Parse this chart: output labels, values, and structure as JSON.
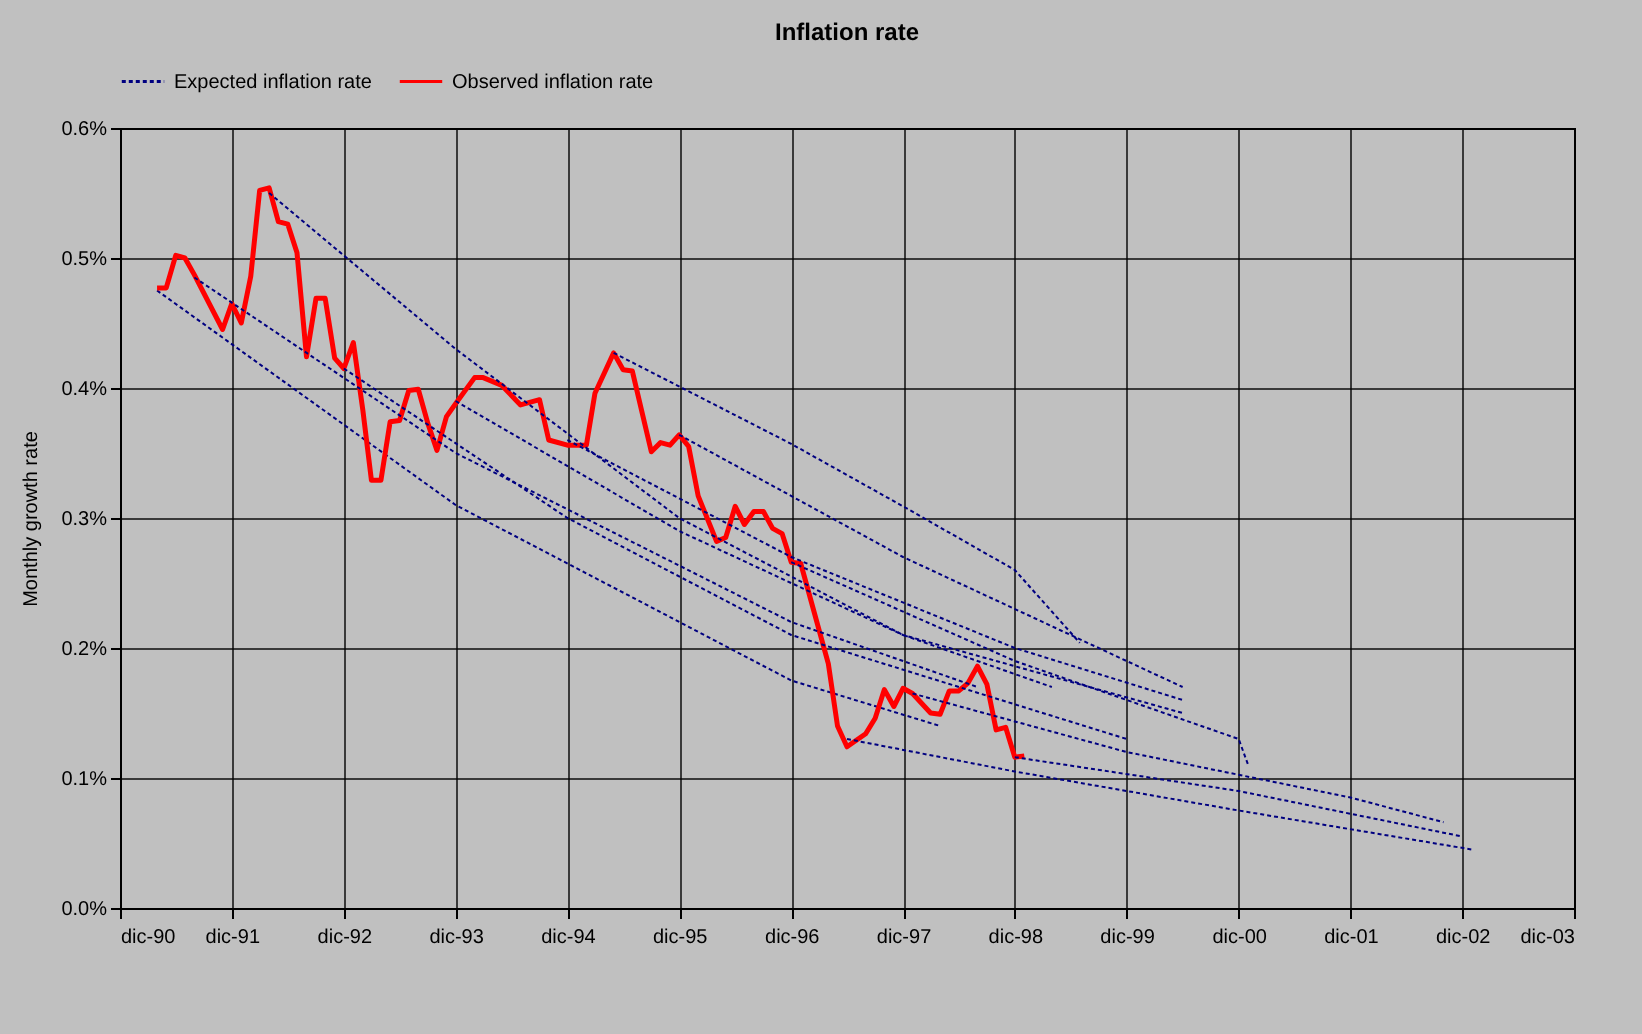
{
  "chart_data": {
    "type": "line",
    "title": "Inflation rate",
    "ylabel": "Monthly growth rate",
    "legend": "top",
    "grid": true,
    "marker": "none",
    "xlim": [
      "1990-12",
      "2003-12"
    ],
    "xticks": [
      {
        "value": "1990-12",
        "label": "dic-90"
      },
      {
        "value": "1991-12",
        "label": "dic-91"
      },
      {
        "value": "1992-12",
        "label": "dic-92"
      },
      {
        "value": "1993-12",
        "label": "dic-93"
      },
      {
        "value": "1994-12",
        "label": "dic-94"
      },
      {
        "value": "1995-12",
        "label": "dic-95"
      },
      {
        "value": "1996-12",
        "label": "dic-96"
      },
      {
        "value": "1997-12",
        "label": "dic-97"
      },
      {
        "value": "1998-12",
        "label": "dic-98"
      },
      {
        "value": "1999-12",
        "label": "dic-99"
      },
      {
        "value": "2000-12",
        "label": "dic-00"
      },
      {
        "value": "2001-12",
        "label": "dic-01"
      },
      {
        "value": "2002-12",
        "label": "dic-02"
      },
      {
        "value": "2003-12",
        "label": "dic-03"
      }
    ],
    "ylim": [
      0,
      0.6
    ],
    "yticks": [
      {
        "value": 0,
        "label": "0.0%"
      },
      {
        "value": 0.1,
        "label": "0.1%"
      },
      {
        "value": 0.2,
        "label": "0.2%"
      },
      {
        "value": 0.3,
        "label": "0.3%"
      },
      {
        "value": 0.4,
        "label": "0.4%"
      },
      {
        "value": 0.5,
        "label": "0.5%"
      },
      {
        "value": 0.6,
        "label": "0.6%"
      }
    ],
    "series": [
      {
        "name": "Expected inflation rate",
        "color": "#000080",
        "line_style": "dotted",
        "x": [
          "1991-04",
          "1993-12",
          "1996-12",
          "1998-04"
        ],
        "values": [
          0.475,
          0.31,
          0.175,
          0.14
        ]
      },
      {
        "color": "#000080",
        "line_style": "dotted",
        "x": [
          "1991-08",
          "1993-12",
          "1996-12",
          "1998-08"
        ],
        "values": [
          0.485,
          0.35,
          0.22,
          0.17
        ]
      },
      {
        "color": "#000080",
        "line_style": "dotted",
        "x": [
          "1992-04",
          "1993-12",
          "1995-12",
          "1997-12",
          "1999-04"
        ],
        "values": [
          0.55,
          0.43,
          0.3,
          0.21,
          0.17
        ]
      },
      {
        "color": "#000080",
        "line_style": "dotted",
        "x": [
          "1992-12",
          "1994-12",
          "1996-12",
          "1999-12"
        ],
        "values": [
          0.415,
          0.3,
          0.21,
          0.13
        ]
      },
      {
        "color": "#000080",
        "line_style": "dotted",
        "x": [
          "1993-12",
          "1995-12",
          "1997-12",
          "2000-06"
        ],
        "values": [
          0.39,
          0.29,
          0.21,
          0.15
        ]
      },
      {
        "color": "#000080",
        "line_style": "dotted",
        "x": [
          "1994-12",
          "1996-12",
          "1998-12",
          "2000-06"
        ],
        "values": [
          0.36,
          0.27,
          0.2,
          0.16
        ]
      },
      {
        "color": "#000080",
        "line_style": "dotted",
        "x": [
          "1995-05",
          "1996-12",
          "1997-12",
          "1998-12",
          "1999-07"
        ],
        "values": [
          0.427,
          0.357,
          0.309,
          0.26,
          0.204
        ]
      },
      {
        "color": "#000080",
        "line_style": "dotted",
        "x": [
          "1995-12",
          "1997-12",
          "1999-12",
          "2000-06"
        ],
        "values": [
          0.364,
          0.27,
          0.19,
          0.17
        ]
      },
      {
        "color": "#000080",
        "line_style": "dotted",
        "x": [
          "1996-12",
          "1998-12",
          "2000-12",
          "2001-01"
        ],
        "values": [
          0.266,
          0.19,
          0.13,
          0.11
        ]
      },
      {
        "color": "#000080",
        "line_style": "dotted",
        "x": [
          "1997-06",
          "1998-12",
          "2000-12",
          "2003-01"
        ],
        "values": [
          0.13,
          0.105,
          0.075,
          0.045
        ]
      },
      {
        "color": "#000080",
        "line_style": "dotted",
        "x": [
          "1998-01",
          "1999-12",
          "2001-12",
          "2002-10"
        ],
        "values": [
          0.165,
          0.12,
          0.085,
          0.066
        ]
      },
      {
        "color": "#000080",
        "line_style": "dotted",
        "x": [
          "1998-12",
          "2000-12",
          "2002-12"
        ],
        "values": [
          0.116,
          0.09,
          0.055
        ]
      },
      {
        "name": "Observed inflation rate",
        "color": "#ff0000",
        "line_style": "solid",
        "x": [
          "1991-04",
          "1991-05",
          "1991-06",
          "1991-07",
          "1991-08",
          "1991-11",
          "1991-12",
          "1992-01",
          "1992-02",
          "1992-03",
          "1992-04",
          "1992-05",
          "1992-06",
          "1992-07",
          "1992-08",
          "1992-09",
          "1992-10",
          "1992-11",
          "1992-12",
          "1993-01",
          "1993-02",
          "1993-03",
          "1993-04",
          "1993-05",
          "1993-06",
          "1993-07",
          "1993-08",
          "1993-09",
          "1993-10",
          "1993-11",
          "1993-12",
          "1994-02",
          "1994-03",
          "1994-05",
          "1994-07",
          "1994-09",
          "1994-10",
          "1994-12",
          "1995-02",
          "1995-03",
          "1995-05",
          "1995-06",
          "1995-07",
          "1995-09",
          "1995-10",
          "1995-11",
          "1995-12",
          "1996-01",
          "1996-02",
          "1996-04",
          "1996-05",
          "1996-06",
          "1996-07",
          "1996-08",
          "1996-09",
          "1996-10",
          "1996-11",
          "1996-12",
          "1997-01",
          "1997-04",
          "1997-05",
          "1997-06",
          "1997-08",
          "1997-09",
          "1997-10",
          "1997-11",
          "1997-12",
          "1998-01",
          "1998-03",
          "1998-04",
          "1998-05",
          "1998-06",
          "1998-07",
          "1998-08",
          "1998-09",
          "1998-10",
          "1998-11",
          "1998-12",
          "1999-01"
        ],
        "values": [
          0.477,
          0.477,
          0.502,
          0.5,
          0.487,
          0.445,
          0.465,
          0.45,
          0.486,
          0.552,
          0.554,
          0.528,
          0.526,
          0.504,
          0.424,
          0.469,
          0.469,
          0.423,
          0.415,
          0.435,
          0.383,
          0.329,
          0.329,
          0.374,
          0.375,
          0.398,
          0.399,
          0.373,
          0.352,
          0.378,
          0.388,
          0.408,
          0.408,
          0.402,
          0.387,
          0.391,
          0.36,
          0.356,
          0.356,
          0.396,
          0.427,
          0.414,
          0.413,
          0.351,
          0.358,
          0.356,
          0.364,
          0.355,
          0.317,
          0.282,
          0.285,
          0.309,
          0.295,
          0.305,
          0.305,
          0.292,
          0.288,
          0.266,
          0.265,
          0.188,
          0.14,
          0.124,
          0.134,
          0.146,
          0.168,
          0.155,
          0.169,
          0.165,
          0.15,
          0.149,
          0.167,
          0.167,
          0.173,
          0.186,
          0.172,
          0.137,
          0.139,
          0.116,
          0.117
        ]
      }
    ]
  }
}
